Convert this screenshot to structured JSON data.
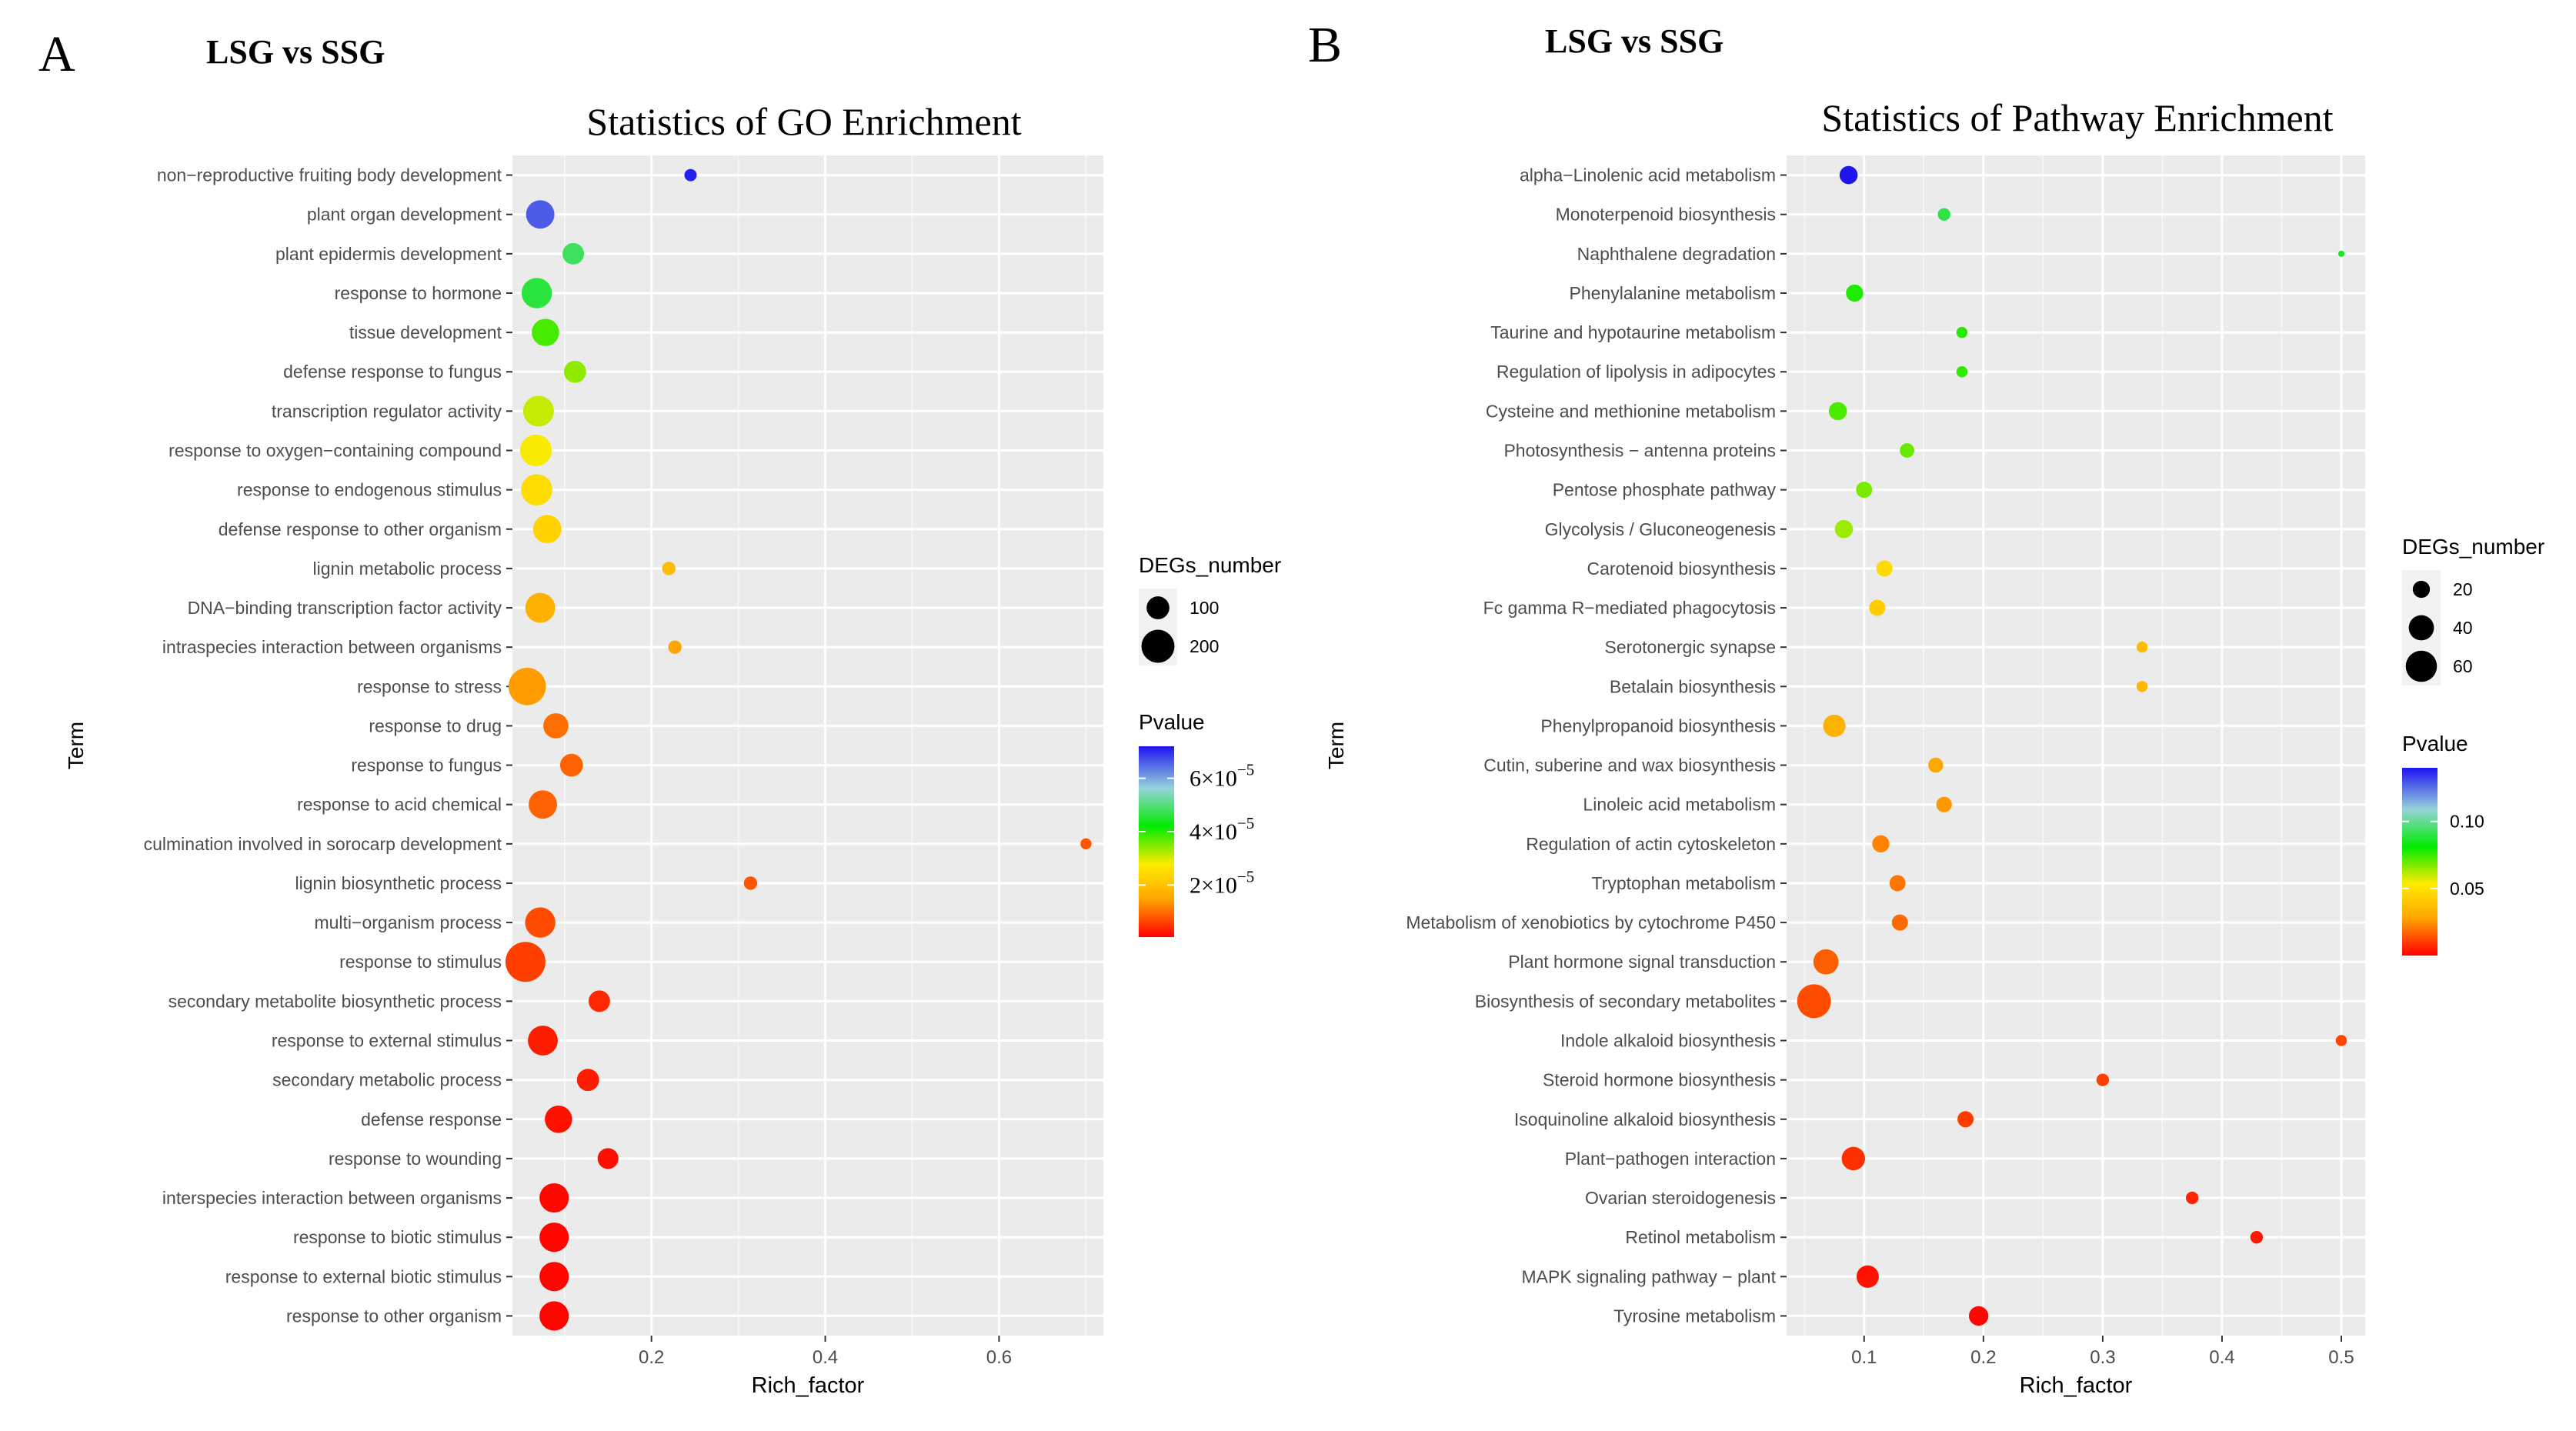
{
  "chart_data": [
    {
      "type": "scatter",
      "panel_letter": "A",
      "heading": "LSG vs SSG",
      "title": "Statistics of GO Enrichment",
      "xlabel": "Rich_factor",
      "ylabel": "Term",
      "xlim": [
        0.04,
        0.72
      ],
      "xticks": [
        0.2,
        0.4,
        0.6
      ],
      "xtick_labels": [
        "0.2",
        "0.4",
        "0.6"
      ],
      "size_legend": {
        "title": "DEGs_number",
        "values": [
          100,
          200
        ],
        "labels": [
          "100",
          "200"
        ]
      },
      "color_legend": {
        "title": "Pvalue",
        "min": 5e-07,
        "max": 7.2e-05,
        "ticks": [
          2e-05,
          4e-05,
          6e-05
        ],
        "tick_labels": [
          "2×10",
          "4×10",
          "6×10"
        ],
        "tick_exp": "−5"
      },
      "points": [
        {
          "term": "non−reproductive fruiting body development",
          "rich": 0.245,
          "count": 35,
          "p": 7.1e-05
        },
        {
          "term": "plant organ development",
          "rich": 0.072,
          "count": 150,
          "p": 6.6e-05
        },
        {
          "term": "plant epidermis development",
          "rich": 0.11,
          "count": 90,
          "p": 4.8e-05
        },
        {
          "term": "response to hormone",
          "rich": 0.068,
          "count": 170,
          "p": 4.6e-05
        },
        {
          "term": "tissue development",
          "rich": 0.078,
          "count": 140,
          "p": 3.8e-05
        },
        {
          "term": "defense response to fungus",
          "rich": 0.112,
          "count": 95,
          "p": 3.4e-05
        },
        {
          "term": "transcription regulator activity",
          "rich": 0.07,
          "count": 175,
          "p": 3.1e-05
        },
        {
          "term": "response to oxygen−containing compound",
          "rich": 0.067,
          "count": 185,
          "p": 2.8e-05
        },
        {
          "term": "response to endogenous stimulus",
          "rich": 0.068,
          "count": 180,
          "p": 2.5e-05
        },
        {
          "term": "defense response to other organism",
          "rich": 0.08,
          "count": 150,
          "p": 2.3e-05
        },
        {
          "term": "lignin metabolic process",
          "rich": 0.22,
          "count": 40,
          "p": 1.9e-05
        },
        {
          "term": "DNA−binding transcription factor activity",
          "rich": 0.072,
          "count": 165,
          "p": 1.7e-05
        },
        {
          "term": "intraspecies interaction between organisms",
          "rich": 0.227,
          "count": 40,
          "p": 1.5e-05
        },
        {
          "term": "response to stress",
          "rich": 0.057,
          "count": 255,
          "p": 1.4e-05
        },
        {
          "term": "response to drug",
          "rich": 0.09,
          "count": 120,
          "p": 1e-05
        },
        {
          "term": "response to fungus",
          "rich": 0.108,
          "count": 100,
          "p": 9e-06
        },
        {
          "term": "response to acid chemical",
          "rich": 0.075,
          "count": 150,
          "p": 9e-06
        },
        {
          "term": "culmination involved in sorocarp development",
          "rich": 0.7,
          "count": 30,
          "p": 8e-06
        },
        {
          "term": "lignin biosynthetic process",
          "rich": 0.314,
          "count": 40,
          "p": 8e-06
        },
        {
          "term": "multi−organism process",
          "rich": 0.072,
          "count": 170,
          "p": 7e-06
        },
        {
          "term": "response to stimulus",
          "rich": 0.055,
          "count": 290,
          "p": 6e-06
        },
        {
          "term": "secondary metabolite biosynthetic process",
          "rich": 0.14,
          "count": 90,
          "p": 4e-06
        },
        {
          "term": "response to external stimulus",
          "rich": 0.075,
          "count": 165,
          "p": 3e-06
        },
        {
          "term": "secondary metabolic process",
          "rich": 0.127,
          "count": 95,
          "p": 3e-06
        },
        {
          "term": "defense response",
          "rich": 0.093,
          "count": 140,
          "p": 2e-06
        },
        {
          "term": "response to wounding",
          "rich": 0.15,
          "count": 85,
          "p": 1.8e-06
        },
        {
          "term": "interspecies interaction between organisms",
          "rich": 0.088,
          "count": 160,
          "p": 1.2e-06
        },
        {
          "term": "response to biotic stimulus",
          "rich": 0.088,
          "count": 160,
          "p": 1e-06
        },
        {
          "term": "response to external biotic stimulus",
          "rich": 0.088,
          "count": 160,
          "p": 1e-06
        },
        {
          "term": "response to other organism",
          "rich": 0.088,
          "count": 160,
          "p": 1e-06
        }
      ]
    },
    {
      "type": "scatter",
      "panel_letter": "B",
      "heading": "LSG vs SSG",
      "title": "Statistics of Pathway Enrichment",
      "xlabel": "Rich_factor",
      "ylabel": "Term",
      "xlim": [
        0.035,
        0.52
      ],
      "xticks": [
        0.1,
        0.2,
        0.3,
        0.4,
        0.5
      ],
      "xtick_labels": [
        "0.1",
        "0.2",
        "0.3",
        "0.4",
        "0.5"
      ],
      "size_legend": {
        "title": "DEGs_number",
        "values": [
          20,
          40,
          60
        ],
        "labels": [
          "20",
          "40",
          "60"
        ]
      },
      "color_legend": {
        "title": "Pvalue",
        "min": 0.0,
        "max": 0.14,
        "ticks": [
          0.05,
          0.1
        ],
        "tick_labels": [
          "0.05",
          "0.10"
        ]
      },
      "points": [
        {
          "term": "alpha−Linolenic acid metabolism",
          "rich": 0.087,
          "count": 22,
          "p": 0.14
        },
        {
          "term": "Monoterpenoid biosynthesis",
          "rich": 0.167,
          "count": 12,
          "p": 0.09
        },
        {
          "term": "Naphthalene degradation",
          "rich": 0.5,
          "count": 5,
          "p": 0.085
        },
        {
          "term": "Phenylalanine metabolism",
          "rich": 0.092,
          "count": 20,
          "p": 0.078
        },
        {
          "term": "Taurine and hypotaurine metabolism",
          "rich": 0.182,
          "count": 10,
          "p": 0.077
        },
        {
          "term": "Regulation of lipolysis in adipocytes",
          "rich": 0.182,
          "count": 10,
          "p": 0.076
        },
        {
          "term": "Cysteine and methionine metabolism",
          "rich": 0.078,
          "count": 22,
          "p": 0.073
        },
        {
          "term": "Photosynthesis − antenna proteins",
          "rich": 0.136,
          "count": 15,
          "p": 0.07
        },
        {
          "term": "Pentose phosphate pathway",
          "rich": 0.1,
          "count": 18,
          "p": 0.068
        },
        {
          "term": "Glycolysis / Gluconeogenesis",
          "rich": 0.083,
          "count": 22,
          "p": 0.064
        },
        {
          "term": "Carotenoid biosynthesis",
          "rich": 0.117,
          "count": 18,
          "p": 0.047
        },
        {
          "term": "Fc gamma R−mediated phagocytosis",
          "rich": 0.111,
          "count": 18,
          "p": 0.042
        },
        {
          "term": "Serotonergic synapse",
          "rich": 0.333,
          "count": 10,
          "p": 0.036
        },
        {
          "term": "Betalain biosynthesis",
          "rich": 0.333,
          "count": 10,
          "p": 0.035
        },
        {
          "term": "Phenylpropanoid biosynthesis",
          "rich": 0.075,
          "count": 32,
          "p": 0.033
        },
        {
          "term": "Cutin, suberine and wax biosynthesis",
          "rich": 0.16,
          "count": 16,
          "p": 0.029
        },
        {
          "term": "Linoleic acid metabolism",
          "rich": 0.167,
          "count": 17,
          "p": 0.026
        },
        {
          "term": "Regulation of actin cytoskeleton",
          "rich": 0.114,
          "count": 20,
          "p": 0.022
        },
        {
          "term": "Tryptophan metabolism",
          "rich": 0.128,
          "count": 18,
          "p": 0.02
        },
        {
          "term": "Metabolism of xenobiotics by cytochrome P450",
          "rich": 0.13,
          "count": 18,
          "p": 0.018
        },
        {
          "term": "Plant hormone signal transduction",
          "rich": 0.068,
          "count": 40,
          "p": 0.016
        },
        {
          "term": "Biosynthesis of secondary metabolites",
          "rich": 0.058,
          "count": 70,
          "p": 0.013
        },
        {
          "term": "Indole alkaloid biosynthesis",
          "rich": 0.5,
          "count": 10,
          "p": 0.012
        },
        {
          "term": "Steroid hormone biosynthesis",
          "rich": 0.3,
          "count": 12,
          "p": 0.011
        },
        {
          "term": "Isoquinoline alkaloid biosynthesis",
          "rich": 0.185,
          "count": 18,
          "p": 0.01
        },
        {
          "term": "Plant−pathogen interaction",
          "rich": 0.091,
          "count": 35,
          "p": 0.008
        },
        {
          "term": "Ovarian steroidogenesis",
          "rich": 0.375,
          "count": 12,
          "p": 0.006
        },
        {
          "term": "Retinol metabolism",
          "rich": 0.429,
          "count": 12,
          "p": 0.004
        },
        {
          "term": "MAPK signaling pathway − plant",
          "rich": 0.103,
          "count": 32,
          "p": 0.003
        },
        {
          "term": "Tyrosine metabolism",
          "rich": 0.196,
          "count": 25,
          "p": 0.001
        }
      ]
    }
  ]
}
